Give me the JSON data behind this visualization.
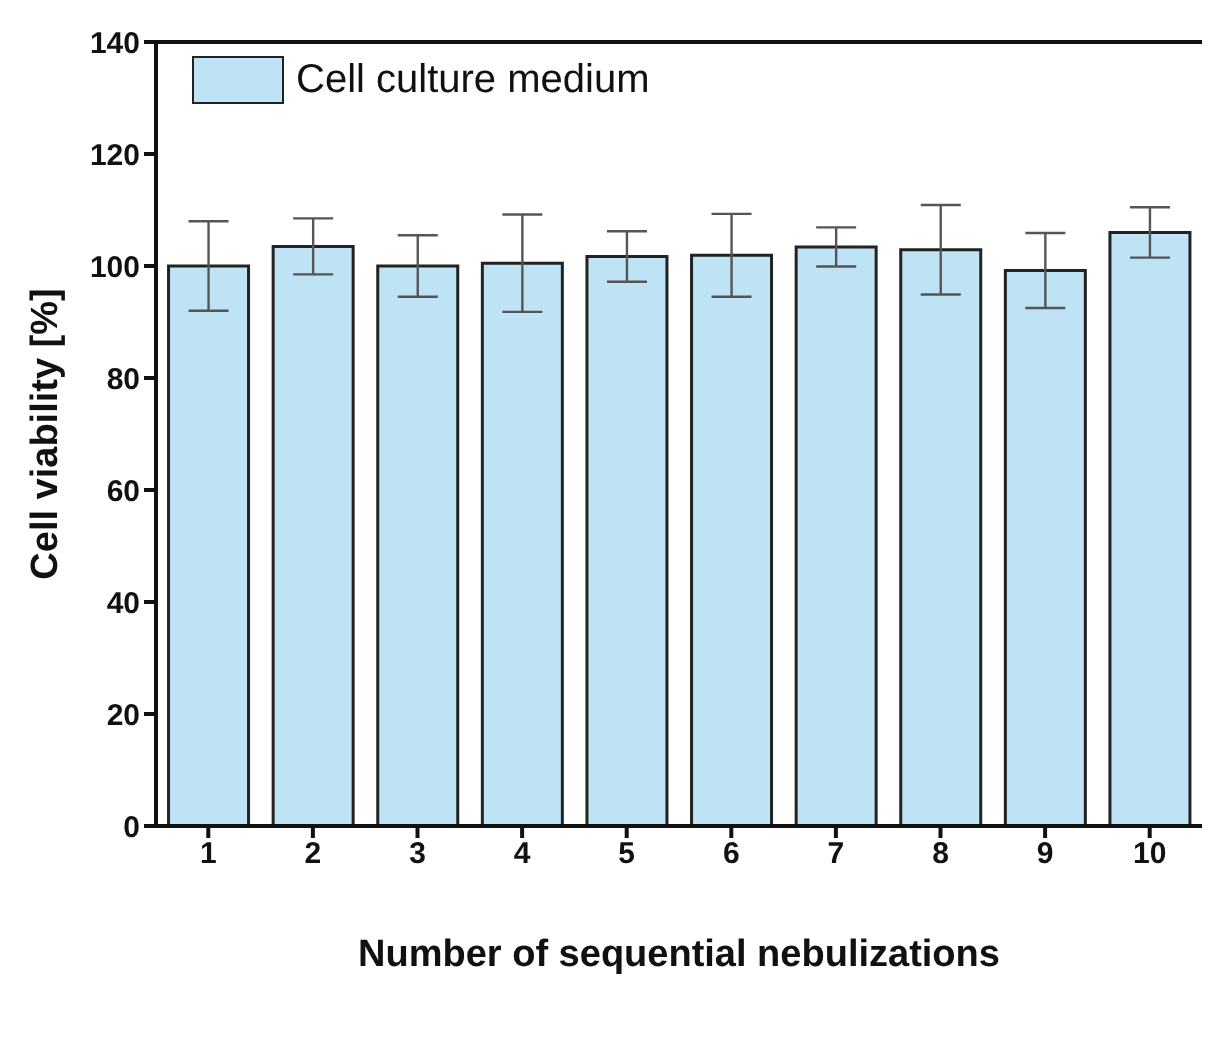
{
  "chart_data": {
    "type": "bar",
    "xlabel": "Number of sequential nebulizations",
    "ylabel": "Cell viability [%]",
    "categories": [
      "1",
      "2",
      "3",
      "4",
      "5",
      "6",
      "7",
      "8",
      "9",
      "10"
    ],
    "series": [
      {
        "name": "Cell culture medium",
        "color": "#bde3f5",
        "values": [
          100,
          103.5,
          100,
          100.5,
          101.7,
          101.9,
          103.4,
          102.9,
          99.2,
          106
        ],
        "errors": [
          8,
          5,
          5.5,
          8.7,
          4.5,
          7.4,
          3.5,
          8,
          6.7,
          4.5
        ]
      }
    ],
    "ylim": [
      0,
      140
    ],
    "yticks": [
      0,
      20,
      40,
      60,
      80,
      100,
      120,
      140
    ],
    "grid": false,
    "legend": "top left"
  }
}
